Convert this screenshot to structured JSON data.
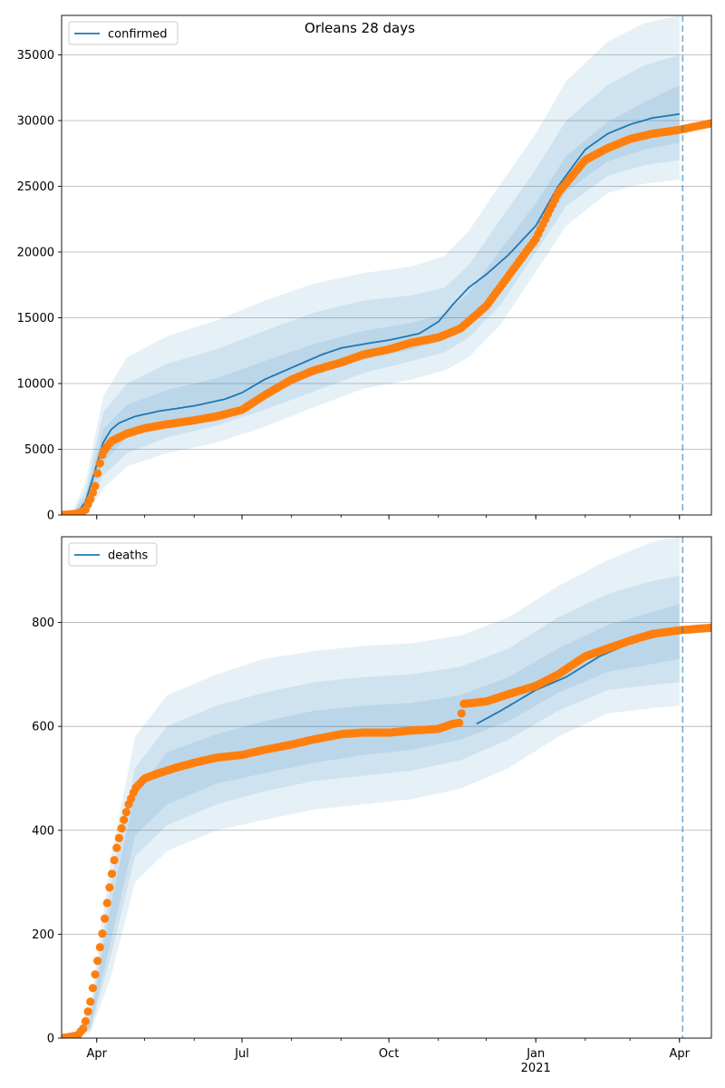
{
  "figure": {
    "title": "Orleans 28 days"
  },
  "colors": {
    "model": "#1f77b4",
    "observed": "#ff7f0e",
    "band": "#1f77b4",
    "grid": "#b0b0b0"
  },
  "chart_data": [
    {
      "type": "line",
      "legend": "confirmed",
      "legend_placement": "upper-left",
      "grid": "y",
      "xlim": [
        "2020-03-10",
        "2021-04-21"
      ],
      "ylim": [
        0,
        38000
      ],
      "x_major_ticks": [
        {
          "date": "2020-04-01",
          "label": "Apr"
        },
        {
          "date": "2020-07-01",
          "label": "Jul"
        },
        {
          "date": "2020-10-01",
          "label": "Oct"
        },
        {
          "date": "2021-01-01",
          "label": "Jan",
          "sublabel": ""
        },
        {
          "date": "2021-04-01",
          "label": "Apr"
        }
      ],
      "y_ticks": [
        0,
        5000,
        10000,
        15000,
        20000,
        25000,
        30000,
        35000
      ],
      "forecast_line": "2021-04-03",
      "model_line": {
        "x": [
          "2020-03-16",
          "2020-03-20",
          "2020-03-25",
          "2020-03-30",
          "2020-04-05",
          "2020-04-10",
          "2020-04-15",
          "2020-04-25",
          "2020-05-10",
          "2020-06-01",
          "2020-06-20",
          "2020-07-01",
          "2020-07-15",
          "2020-08-01",
          "2020-08-20",
          "2020-09-01",
          "2020-09-20",
          "2020-10-01",
          "2020-10-20",
          "2020-11-01",
          "2020-11-10",
          "2020-11-20",
          "2020-12-01",
          "2020-12-15",
          "2021-01-01",
          "2021-01-15",
          "2021-02-01",
          "2021-02-15",
          "2021-03-01",
          "2021-03-15",
          "2021-04-01"
        ],
        "y": [
          0,
          200,
          1000,
          3000,
          5500,
          6500,
          7000,
          7500,
          7900,
          8300,
          8800,
          9300,
          10300,
          11200,
          12200,
          12700,
          13100,
          13300,
          13800,
          14700,
          16000,
          17300,
          18300,
          19800,
          22000,
          25000,
          27800,
          29000,
          29700,
          30200,
          30500
        ]
      },
      "bands": [
        {
          "name": "outer",
          "x": [
            "2020-03-16",
            "2020-03-25",
            "2020-04-05",
            "2020-04-20",
            "2020-05-15",
            "2020-06-15",
            "2020-07-15",
            "2020-08-15",
            "2020-09-15",
            "2020-10-15",
            "2020-11-05",
            "2020-11-20",
            "2020-12-10",
            "2021-01-01",
            "2021-01-20",
            "2021-02-15",
            "2021-03-10",
            "2021-04-01"
          ],
          "lower": [
            0,
            0,
            2000,
            3700,
            4700,
            5500,
            6700,
            8200,
            9600,
            10300,
            11000,
            12000,
            14500,
            18500,
            22000,
            24500,
            25200,
            25500
          ],
          "upper": [
            0,
            2500,
            9000,
            12000,
            13600,
            14800,
            16300,
            17600,
            18400,
            18900,
            19700,
            21600,
            25200,
            29000,
            33000,
            36000,
            37400,
            38000
          ]
        },
        {
          "name": "middle",
          "x": [
            "2020-03-16",
            "2020-03-25",
            "2020-04-05",
            "2020-04-20",
            "2020-05-15",
            "2020-06-15",
            "2020-07-15",
            "2020-08-15",
            "2020-09-15",
            "2020-10-15",
            "2020-11-05",
            "2020-11-20",
            "2020-12-10",
            "2021-01-01",
            "2021-01-20",
            "2021-02-15",
            "2021-03-10",
            "2021-04-01"
          ],
          "lower": [
            0,
            300,
            3000,
            4700,
            5900,
            6800,
            8000,
            9400,
            10800,
            11700,
            12400,
            13500,
            16000,
            20000,
            23500,
            25800,
            26600,
            27000
          ],
          "upper": [
            0,
            1800,
            7800,
            10000,
            11500,
            12600,
            14000,
            15400,
            16300,
            16700,
            17300,
            19000,
            22500,
            26300,
            30000,
            32700,
            34200,
            35000
          ]
        },
        {
          "name": "inner",
          "x": [
            "2020-03-16",
            "2020-03-25",
            "2020-04-05",
            "2020-04-20",
            "2020-05-15",
            "2020-06-15",
            "2020-07-15",
            "2020-08-15",
            "2020-09-15",
            "2020-10-15",
            "2020-11-05",
            "2020-11-20",
            "2020-12-10",
            "2021-01-01",
            "2021-01-20",
            "2021-02-15",
            "2021-03-10",
            "2021-04-01"
          ],
          "lower": [
            0,
            600,
            4000,
            5900,
            6900,
            7700,
            9000,
            10600,
            11800,
            12600,
            13300,
            14600,
            17300,
            21000,
            24600,
            26900,
            27800,
            28300
          ],
          "upper": [
            0,
            1400,
            6500,
            8400,
            9500,
            10400,
            11700,
            13000,
            14000,
            14600,
            15300,
            16900,
            20200,
            23700,
            27300,
            29900,
            31400,
            32700
          ]
        }
      ],
      "observed": {
        "x": [
          "2020-03-10",
          "2020-03-20",
          "2020-03-25",
          "2020-03-28",
          "2020-03-31",
          "2020-04-02",
          "2020-04-05",
          "2020-04-10",
          "2020-04-20",
          "2020-05-01",
          "2020-05-15",
          "2020-06-01",
          "2020-06-15",
          "2020-07-01",
          "2020-07-15",
          "2020-08-01",
          "2020-08-15",
          "2020-09-01",
          "2020-09-15",
          "2020-10-01",
          "2020-10-15",
          "2020-11-01",
          "2020-11-15",
          "2020-12-01",
          "2020-12-15",
          "2021-01-01",
          "2021-01-15",
          "2021-02-01",
          "2021-02-15",
          "2021-03-01",
          "2021-03-15",
          "2021-04-01",
          "2021-04-21"
        ],
        "y": [
          0,
          100,
          400,
          1200,
          2200,
          3500,
          4800,
          5600,
          6200,
          6600,
          6900,
          7200,
          7500,
          8000,
          9100,
          10300,
          11000,
          11600,
          12200,
          12600,
          13100,
          13500,
          14200,
          15900,
          18200,
          21000,
          24500,
          27000,
          27900,
          28600,
          29000,
          29300,
          29800
        ]
      }
    },
    {
      "type": "line",
      "legend": "deaths",
      "legend_placement": "upper-left",
      "grid": "y",
      "xlim": [
        "2020-03-10",
        "2021-04-21"
      ],
      "ylim": [
        0,
        965
      ],
      "x_major_ticks": [
        {
          "date": "2020-04-01",
          "label": "Apr"
        },
        {
          "date": "2020-07-01",
          "label": "Jul"
        },
        {
          "date": "2020-10-01",
          "label": "Oct"
        },
        {
          "date": "2021-01-01",
          "label": "Jan",
          "sublabel": "2021"
        },
        {
          "date": "2021-04-01",
          "label": "Apr"
        }
      ],
      "y_ticks": [
        0,
        200,
        400,
        600,
        800
      ],
      "forecast_line": "2021-04-03",
      "model_line": {
        "x": [
          "2020-11-25",
          "2020-12-10",
          "2021-01-01",
          "2021-01-20",
          "2021-02-10",
          "2021-03-01",
          "2021-03-20",
          "2021-04-01"
        ],
        "y": [
          605,
          630,
          670,
          695,
          735,
          760,
          775,
          780
        ]
      },
      "bands": [
        {
          "name": "outer",
          "x": [
            "2020-03-16",
            "2020-03-28",
            "2020-04-10",
            "2020-04-25",
            "2020-05-15",
            "2020-06-15",
            "2020-07-15",
            "2020-08-15",
            "2020-09-15",
            "2020-10-15",
            "2020-11-15",
            "2020-12-15",
            "2021-01-15",
            "2021-02-15",
            "2021-03-15",
            "2021-04-01"
          ],
          "lower": [
            0,
            10,
            120,
            300,
            360,
            400,
            420,
            440,
            450,
            460,
            480,
            520,
            580,
            625,
            635,
            640
          ],
          "upper": [
            0,
            60,
            350,
            580,
            660,
            700,
            730,
            745,
            755,
            760,
            775,
            810,
            870,
            920,
            955,
            965
          ]
        },
        {
          "name": "middle",
          "x": [
            "2020-03-16",
            "2020-03-28",
            "2020-04-10",
            "2020-04-25",
            "2020-05-15",
            "2020-06-15",
            "2020-07-15",
            "2020-08-15",
            "2020-09-15",
            "2020-10-15",
            "2020-11-15",
            "2020-12-15",
            "2021-01-15",
            "2021-02-15",
            "2021-03-15",
            "2021-04-01"
          ],
          "lower": [
            0,
            15,
            160,
            350,
            410,
            450,
            475,
            495,
            505,
            515,
            535,
            575,
            630,
            670,
            680,
            685
          ],
          "upper": [
            0,
            45,
            300,
            520,
            600,
            640,
            665,
            685,
            695,
            700,
            715,
            750,
            810,
            855,
            880,
            890
          ]
        },
        {
          "name": "inner",
          "x": [
            "2020-03-16",
            "2020-03-28",
            "2020-04-10",
            "2020-04-25",
            "2020-05-15",
            "2020-06-15",
            "2020-07-15",
            "2020-08-15",
            "2020-09-15",
            "2020-10-15",
            "2020-11-15",
            "2020-12-15",
            "2021-01-15",
            "2021-02-15",
            "2021-03-15",
            "2021-04-01"
          ],
          "lower": [
            0,
            20,
            190,
            390,
            450,
            490,
            510,
            530,
            545,
            555,
            575,
            610,
            665,
            705,
            720,
            730
          ],
          "upper": [
            0,
            35,
            260,
            470,
            550,
            585,
            610,
            630,
            640,
            645,
            660,
            695,
            750,
            795,
            820,
            835
          ]
        }
      ],
      "observed": {
        "x": [
          "2020-03-10",
          "2020-03-20",
          "2020-03-24",
          "2020-03-28",
          "2020-04-01",
          "2020-04-05",
          "2020-04-09",
          "2020-04-13",
          "2020-04-17",
          "2020-04-21",
          "2020-04-25",
          "2020-05-01",
          "2020-05-10",
          "2020-05-20",
          "2020-06-01",
          "2020-06-15",
          "2020-07-01",
          "2020-07-15",
          "2020-08-01",
          "2020-08-15",
          "2020-09-01",
          "2020-09-15",
          "2020-10-01",
          "2020-10-15",
          "2020-11-01",
          "2020-11-10",
          "2020-11-15",
          "2020-11-16",
          "2020-12-01",
          "2020-12-15",
          "2021-01-01",
          "2021-01-15",
          "2021-02-01",
          "2021-02-15",
          "2021-03-01",
          "2021-03-15",
          "2021-04-01",
          "2021-04-21"
        ],
        "y": [
          0,
          5,
          20,
          70,
          140,
          210,
          290,
          360,
          410,
          450,
          480,
          500,
          510,
          520,
          530,
          540,
          545,
          555,
          565,
          575,
          585,
          588,
          588,
          592,
          595,
          605,
          607,
          643,
          648,
          662,
          678,
          700,
          735,
          750,
          765,
          778,
          785,
          790
        ]
      }
    }
  ]
}
